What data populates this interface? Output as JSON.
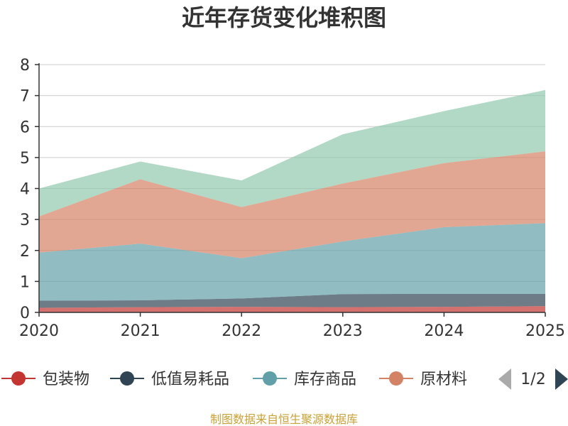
{
  "chart_data": {
    "type": "area",
    "stacked": true,
    "title": "近年存货变化堆积图",
    "xlabel": "",
    "ylabel": "",
    "x": [
      "2020",
      "2021",
      "2022",
      "2023",
      "2024",
      "2025"
    ],
    "ylim": [
      0,
      8
    ],
    "yticks": [
      "0",
      "1",
      "2",
      "3",
      "4",
      "5",
      "6",
      "7",
      "8"
    ],
    "grid": true,
    "legend_position": "bottom",
    "series": [
      {
        "name": "包装物",
        "color": "#c23531",
        "values": [
          0.15,
          0.17,
          0.18,
          0.17,
          0.18,
          0.2
        ]
      },
      {
        "name": "低值易耗品",
        "color": "#2f4554",
        "values": [
          0.23,
          0.22,
          0.27,
          0.42,
          0.42,
          0.4
        ]
      },
      {
        "name": "库存商品",
        "color": "#61a0a8",
        "values": [
          1.55,
          1.83,
          1.3,
          1.7,
          2.15,
          2.28
        ]
      },
      {
        "name": "原材料",
        "color": "#d48265",
        "values": [
          1.17,
          2.08,
          1.65,
          1.87,
          2.07,
          2.32
        ]
      },
      {
        "name": "",
        "color": "#91c7ae",
        "values": [
          0.9,
          0.57,
          0.86,
          1.59,
          1.68,
          1.98
        ]
      }
    ]
  },
  "legend": {
    "items": [
      "包装物",
      "低值易耗品",
      "库存商品",
      "原材料"
    ],
    "page_indicator": "1/2",
    "prev_icon": "triangle-left-icon",
    "next_icon": "triangle-right-icon"
  },
  "footer": {
    "source": "制图数据来自恒生聚源数据库"
  }
}
